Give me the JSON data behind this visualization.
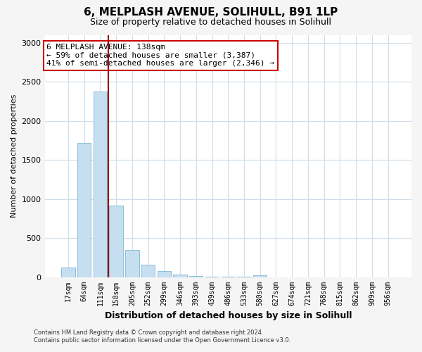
{
  "title": "6, MELPLASH AVENUE, SOLIHULL, B91 1LP",
  "subtitle": "Size of property relative to detached houses in Solihull",
  "xlabel": "Distribution of detached houses by size in Solihull",
  "ylabel": "Number of detached properties",
  "bar_labels": [
    "17sqm",
    "64sqm",
    "111sqm",
    "158sqm",
    "205sqm",
    "252sqm",
    "299sqm",
    "346sqm",
    "393sqm",
    "439sqm",
    "486sqm",
    "533sqm",
    "580sqm",
    "627sqm",
    "674sqm",
    "721sqm",
    "768sqm",
    "815sqm",
    "862sqm",
    "909sqm",
    "956sqm"
  ],
  "bar_values": [
    120,
    1720,
    2380,
    920,
    345,
    155,
    80,
    30,
    10,
    5,
    3,
    2,
    20,
    0,
    0,
    0,
    0,
    0,
    0,
    0,
    0
  ],
  "bar_color": "#c5dff0",
  "bar_edge_color": "#7fb6d4",
  "vline_color": "#990000",
  "annotation_title": "6 MELPLASH AVENUE: 138sqm",
  "annotation_line1": "← 59% of detached houses are smaller (3,387)",
  "annotation_line2": "41% of semi-detached houses are larger (2,346) →",
  "annotation_box_color": "#ffffff",
  "annotation_box_edge": "#cc0000",
  "ylim": [
    0,
    3100
  ],
  "yticks": [
    0,
    500,
    1000,
    1500,
    2000,
    2500,
    3000
  ],
  "footer_line1": "Contains HM Land Registry data © Crown copyright and database right 2024.",
  "footer_line2": "Contains public sector information licensed under the Open Government Licence v3.0.",
  "background_color": "#f5f5f5",
  "plot_bg_color": "#ffffff",
  "grid_color": "#d0dce8"
}
